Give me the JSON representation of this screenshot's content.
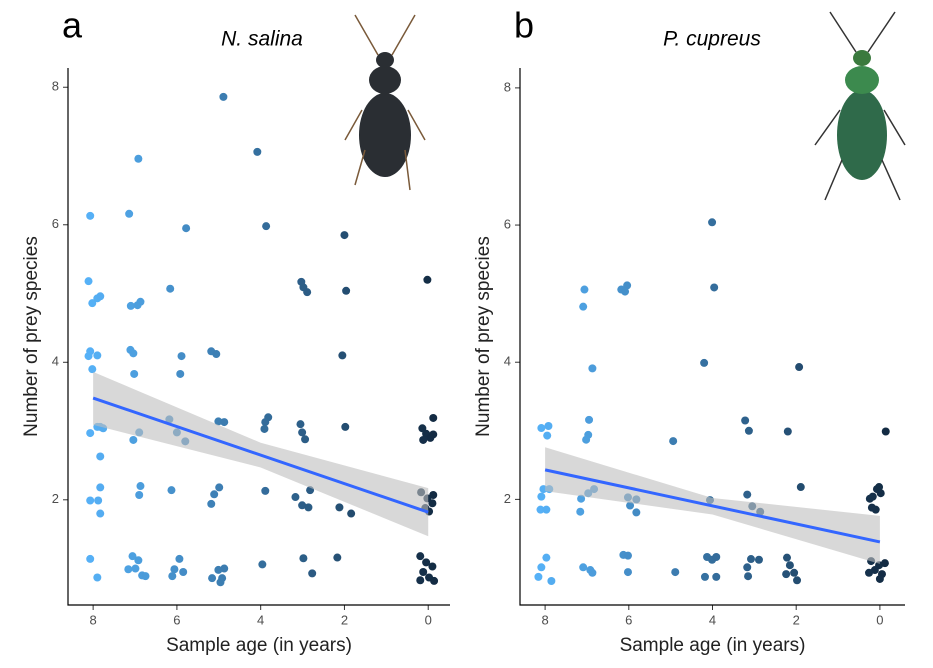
{
  "chart_data": [
    {
      "type": "scatter",
      "panel_label": "a",
      "title": "N. salina",
      "x_label": "Sample age (in years)",
      "y_label": "Number of prey species",
      "xlim": [
        8.6,
        -0.52
      ],
      "ylim": [
        0.47,
        8.28
      ],
      "xticks": [
        8,
        6,
        4,
        2,
        0
      ],
      "yticks": [
        2,
        4,
        6,
        8
      ],
      "color_scale": [
        "#132B43",
        "#56B1F7"
      ],
      "fit_color": "#3366FF",
      "band_color": "#BEBEBE",
      "x": [
        8.07,
        8.11,
        8.02,
        7.9,
        7.83,
        8.07,
        8.11,
        7.9,
        8.02,
        8.07,
        7.9,
        7.83,
        7.76,
        7.83,
        8.07,
        7.83,
        7.88,
        7.83,
        8.07,
        7.9,
        7.14,
        6.92,
        7.1,
        6.94,
        6.87,
        7.11,
        7.04,
        7.02,
        7.04,
        6.9,
        6.87,
        6.9,
        7.06,
        6.92,
        7.16,
        6.99,
        6.83,
        6.75,
        5.78,
        6.16,
        5.89,
        5.92,
        6.18,
        6.0,
        5.8,
        6.13,
        5.94,
        6.06,
        5.85,
        6.11,
        4.89,
        5.18,
        5.06,
        5.01,
        4.87,
        4.99,
        5.11,
        5.18,
        5.16,
        5.01,
        4.92,
        4.96,
        4.87,
        4.08,
        3.87,
        3.82,
        3.89,
        3.91,
        3.89,
        3.96,
        3.03,
        2.98,
        2.89,
        3.05,
        3.01,
        2.94,
        3.17,
        3.01,
        2.82,
        2.86,
        2.98,
        2.77,
        2.0,
        1.96,
        2.05,
        1.98,
        2.12,
        1.84,
        2.17,
        0.02,
        -0.12,
        0.14,
        0.05,
        -0.05,
        0.12,
        -0.12,
        0.17,
        0.02,
        -0.1,
        0.07,
        -0.12,
        -0.02,
        0.19,
        0.05,
        -0.1,
        0.12,
        -0.02,
        -0.14,
        0.19
      ],
      "values": [
        6.13,
        5.18,
        4.86,
        4.93,
        4.96,
        4.16,
        4.09,
        4.1,
        3.9,
        2.97,
        3.06,
        3.06,
        3.04,
        2.63,
        1.99,
        2.18,
        1.99,
        1.8,
        1.14,
        0.87,
        6.16,
        6.96,
        4.82,
        4.83,
        4.88,
        4.18,
        4.13,
        3.83,
        2.87,
        2.98,
        2.2,
        2.07,
        1.18,
        1.12,
        0.99,
        1.0,
        0.9,
        0.89,
        5.95,
        5.07,
        4.09,
        3.83,
        3.17,
        2.98,
        2.85,
        2.14,
        1.14,
        0.99,
        0.95,
        0.89,
        7.86,
        4.16,
        4.12,
        3.14,
        3.13,
        2.18,
        2.08,
        1.94,
        0.86,
        0.98,
        0.86,
        0.8,
        1.0,
        7.06,
        5.98,
        3.2,
        3.13,
        3.03,
        2.13,
        1.06,
        5.17,
        5.09,
        5.02,
        3.1,
        2.98,
        2.88,
        2.04,
        1.92,
        2.14,
        1.89,
        1.15,
        0.93,
        5.85,
        5.04,
        4.1,
        3.06,
        1.89,
        1.8,
        1.16,
        5.2,
        3.19,
        3.04,
        2.96,
        2.9,
        2.87,
        2.95,
        2.11,
        2.02,
        1.95,
        1.88,
        2.07,
        1.83,
        1.18,
        1.09,
        1.03,
        0.95,
        0.87,
        0.82,
        0.83
      ],
      "fit": {
        "x": [
          8,
          0
        ],
        "values": [
          3.48,
          1.82
        ]
      },
      "band": {
        "x": [
          8,
          4,
          0
        ],
        "lower": [
          3.09,
          2.47,
          1.47
        ],
        "upper": [
          3.86,
          2.83,
          2.17
        ]
      }
    },
    {
      "type": "scatter",
      "panel_label": "b",
      "title": "P. cupreus",
      "x_label": "Sample age (in years)",
      "y_label": "Number of prey species",
      "xlim": [
        8.6,
        -0.6
      ],
      "ylim": [
        0.46,
        8.29
      ],
      "xticks": [
        8,
        6,
        4,
        2,
        0
      ],
      "yticks": [
        2,
        4,
        6,
        8
      ],
      "color_scale": [
        "#132B43",
        "#56B1F7"
      ],
      "fit_color": "#3366FF",
      "band_color": "#BEBEBE",
      "x": [
        8.09,
        7.92,
        7.95,
        8.04,
        7.9,
        8.09,
        8.11,
        7.97,
        7.97,
        8.09,
        8.16,
        7.85,
        7.06,
        7.09,
        6.87,
        6.95,
        6.97,
        7.02,
        6.97,
        6.83,
        7.14,
        7.16,
        7.09,
        6.92,
        6.87,
        6.18,
        6.04,
        6.09,
        6.02,
        5.82,
        5.97,
        5.82,
        6.13,
        6.02,
        6.02,
        4.94,
        4.89,
        4.01,
        3.96,
        4.2,
        4.06,
        4.13,
        4.01,
        3.91,
        4.18,
        3.91,
        3.22,
        3.13,
        3.17,
        3.05,
        2.86,
        3.08,
        2.89,
        3.17,
        3.15,
        1.93,
        2.2,
        1.89,
        2.22,
        2.15,
        2.24,
        2.05,
        1.98,
        -0.14,
        0.07,
        -0.02,
        0.17,
        0.02,
        0.24,
        0.1,
        0.19,
        0.21,
        0.02,
        -0.12,
        0.12,
        -0.05,
        0.26,
        0
      ],
      "values": [
        3.04,
        3.07,
        2.93,
        2.15,
        2.15,
        2.04,
        1.85,
        1.85,
        1.15,
        1.01,
        0.87,
        0.81,
        5.06,
        4.81,
        3.91,
        3.16,
        2.94,
        2.87,
        2.09,
        2.15,
        2.01,
        1.82,
        1.01,
        0.97,
        0.93,
        5.06,
        5.12,
        5.03,
        2.03,
        2.0,
        1.91,
        1.81,
        1.19,
        1.18,
        0.94,
        2.85,
        0.94,
        6.04,
        5.09,
        3.99,
        1.99,
        1.16,
        1.12,
        1.16,
        0.87,
        0.87,
        3.15,
        3.0,
        2.07,
        1.9,
        1.82,
        1.13,
        1.12,
        1.01,
        0.88,
        3.93,
        2.99,
        2.18,
        1.15,
        1.04,
        0.91,
        0.93,
        0.82,
        2.99,
        2.15,
        2.09,
        2.04,
        2.18,
        2.01,
        1.85,
        1.88,
        1.1,
        1.04,
        1.07,
        0.97,
        0.91,
        0.93,
        0.84
      ],
      "fit": {
        "x": [
          8,
          0
        ],
        "values": [
          2.43,
          1.38
        ]
      },
      "band": {
        "x": [
          8,
          4,
          0
        ],
        "lower": [
          2.12,
          1.78,
          1.06
        ],
        "upper": [
          2.76,
          2.02,
          1.76
        ]
      }
    }
  ]
}
